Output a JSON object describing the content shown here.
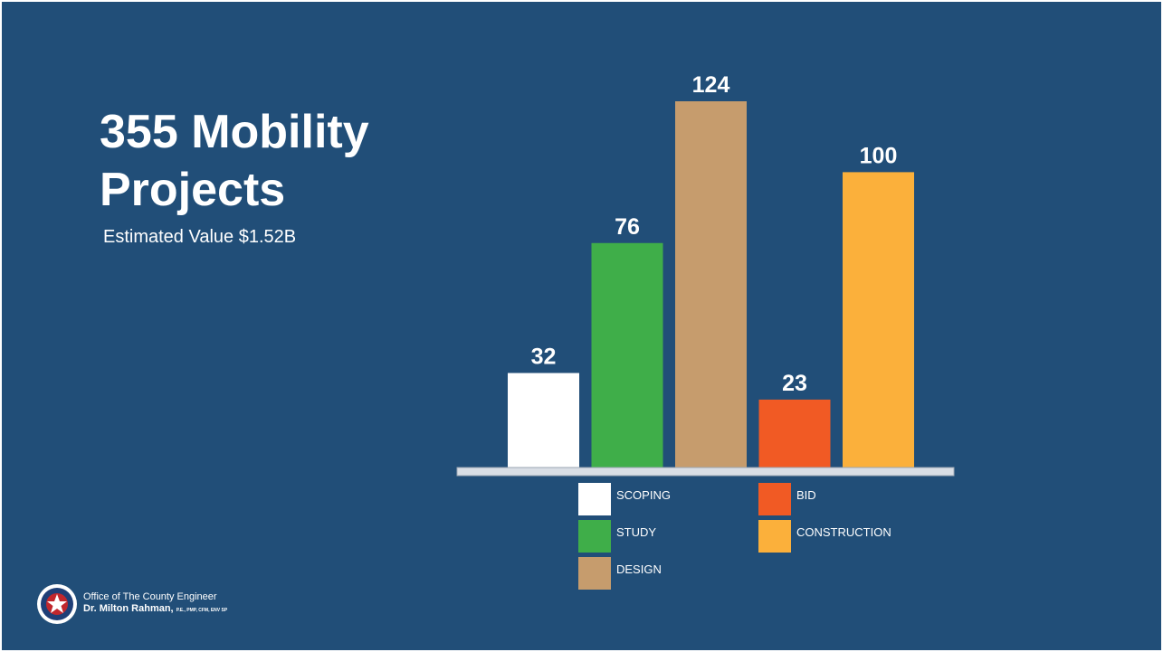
{
  "slide": {
    "title": "355 Mobility Projects",
    "subtitle": "Estimated Value $1.52B",
    "background": "#214e78"
  },
  "footer": {
    "office": "Office of The County Engineer",
    "name": "Dr. Milton Rahman,",
    "credentials": "P.E., PMP, CFM, ENV SP",
    "seal_icon": "county-seal-icon"
  },
  "chart_data": {
    "type": "bar",
    "title": "",
    "xlabel": "",
    "ylabel": "",
    "categories": [
      "SCOPING",
      "STUDY",
      "DESIGN",
      "BID",
      "CONSTRUCTION"
    ],
    "values": [
      32,
      76,
      124,
      23,
      100
    ],
    "colors": [
      "#ffffff",
      "#3fae49",
      "#c69c6d",
      "#f15a24",
      "#fbb03b"
    ],
    "baseline_color": "#d9dee5",
    "ylim": [
      0,
      124
    ],
    "grid": false,
    "legend": {
      "placement": "bottom",
      "entries": [
        {
          "label": "SCOPING",
          "color": "#ffffff"
        },
        {
          "label": "STUDY",
          "color": "#3fae49"
        },
        {
          "label": "DESIGN",
          "color": "#c69c6d"
        },
        {
          "label": "BID",
          "color": "#f15a24"
        },
        {
          "label": "CONSTRUCTION",
          "color": "#fbb03b"
        }
      ]
    }
  }
}
